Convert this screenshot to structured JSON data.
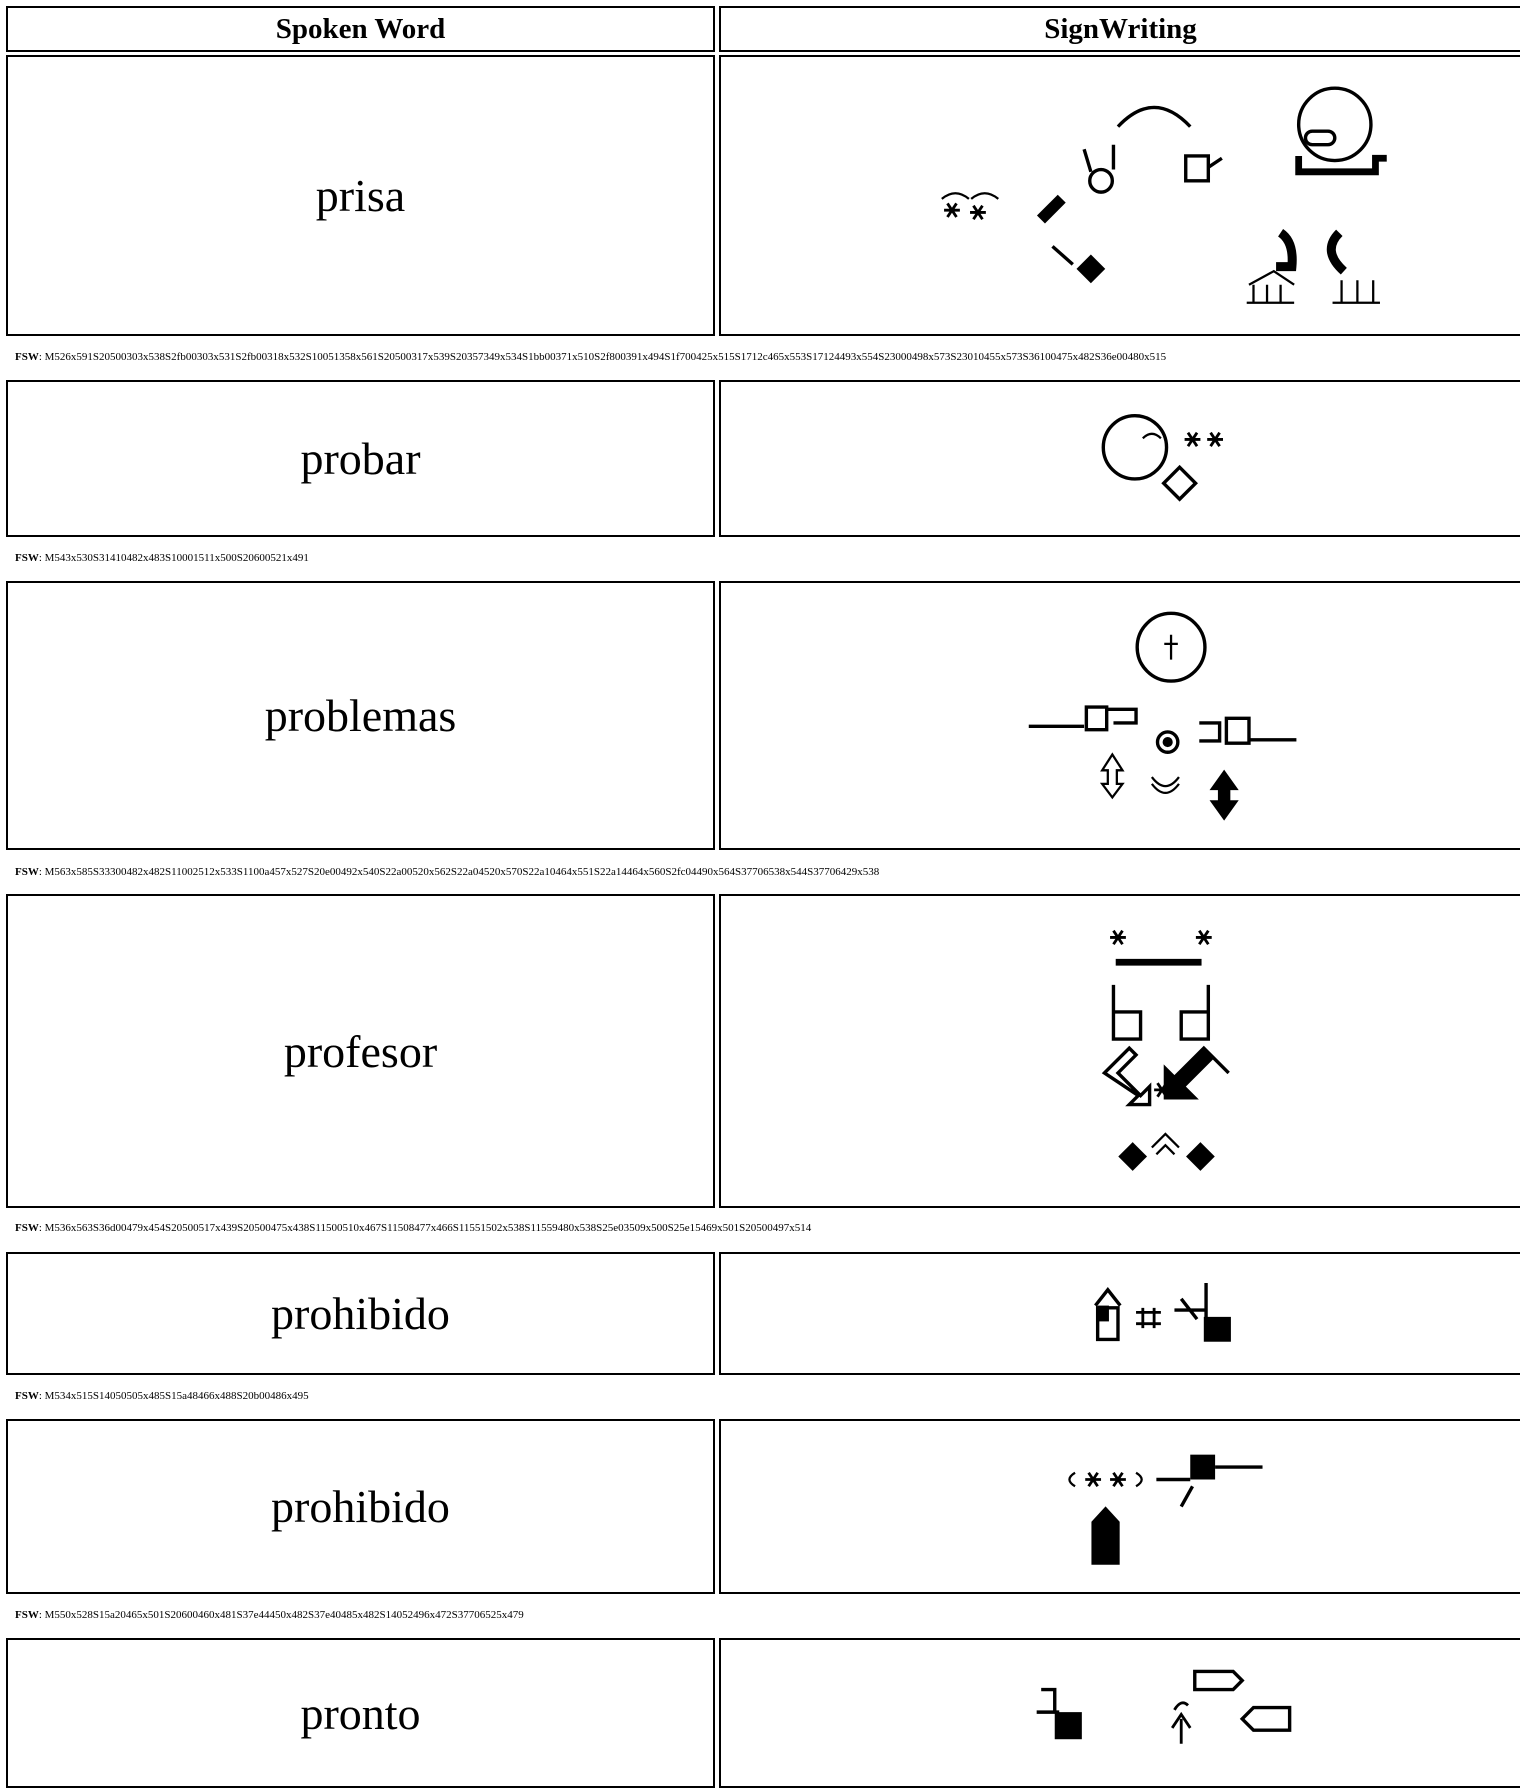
{
  "header": {
    "columns": [
      "Spoken Word",
      "SignWriting"
    ]
  },
  "rows": [
    {
      "word": "prisa",
      "fsw_label": "FSW",
      "fsw": ": M526x591S20500303x538S2fb00303x531S2fb00318x532S10051358x561S20500317x539S20357349x534S1bb00371x510S2f800391x494S1f700425x515S1712c465x553S17124493x554S23000498x573S23010455x573S36100475x482S36e00480x515"
    },
    {
      "word": "probar",
      "fsw_label": "FSW",
      "fsw": ": M543x530S31410482x483S10001511x500S20600521x491"
    },
    {
      "word": "problemas",
      "fsw_label": "FSW",
      "fsw": ": M563x585S33300482x482S11002512x533S1100a457x527S20e00492x540S22a00520x562S22a04520x570S22a10464x551S22a14464x560S2fc04490x564S37706538x544S37706429x538"
    },
    {
      "word": "profesor",
      "fsw_label": "FSW",
      "fsw": ": M536x563S36d00479x454S20500517x439S20500475x438S11500510x467S11508477x466S11551502x538S11559480x538S25e03509x500S25e15469x501S20500497x514"
    },
    {
      "word": "prohibido",
      "fsw_label": "FSW",
      "fsw": ": M534x515S14050505x485S15a48466x488S20b00486x495"
    },
    {
      "word": "prohibido",
      "fsw_label": "FSW",
      "fsw": ": M550x528S15a20465x501S20600460x481S37e44450x482S37e40485x482S14052496x472S37706525x479"
    },
    {
      "word": "pronto"
    }
  ]
}
